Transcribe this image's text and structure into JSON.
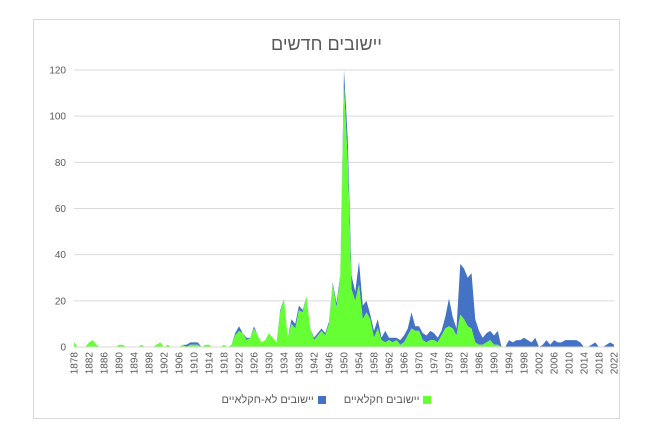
{
  "chart_data": {
    "type": "area",
    "title": "יישובים חדשים",
    "xlabel": "",
    "ylabel": "",
    "ylim": [
      0,
      120
    ],
    "yticks": [
      "0",
      "20",
      "40",
      "60",
      "80",
      "100",
      "120"
    ],
    "xlim": [
      1878,
      2022
    ],
    "xtick_years": [
      1878,
      1882,
      1886,
      1890,
      1894,
      1898,
      1902,
      1906,
      1910,
      1914,
      1918,
      1922,
      1926,
      1930,
      1934,
      1938,
      1942,
      1946,
      1950,
      1954,
      1958,
      1962,
      1966,
      1970,
      1974,
      1978,
      1982,
      1986,
      1990,
      1994,
      1998,
      2002,
      2006,
      2010,
      2014,
      2018,
      2022
    ],
    "grid": true,
    "legend_position": "bottom",
    "series": [
      {
        "name": "יישובים חקלאיים",
        "color": "#66ff33",
        "points": [
          [
            1878,
            2
          ],
          [
            1879,
            0
          ],
          [
            1880,
            0
          ],
          [
            1881,
            0
          ],
          [
            1882,
            2
          ],
          [
            1883,
            3
          ],
          [
            1884,
            1
          ],
          [
            1885,
            0
          ],
          [
            1886,
            0
          ],
          [
            1887,
            0
          ],
          [
            1888,
            0
          ],
          [
            1889,
            0
          ],
          [
            1890,
            1
          ],
          [
            1891,
            1
          ],
          [
            1892,
            0
          ],
          [
            1893,
            0
          ],
          [
            1894,
            0
          ],
          [
            1895,
            0
          ],
          [
            1896,
            1
          ],
          [
            1897,
            0
          ],
          [
            1898,
            0
          ],
          [
            1899,
            0
          ],
          [
            1900,
            1
          ],
          [
            1901,
            2
          ],
          [
            1902,
            0
          ],
          [
            1903,
            1
          ],
          [
            1904,
            0
          ],
          [
            1905,
            0
          ],
          [
            1906,
            0
          ],
          [
            1907,
            1
          ],
          [
            1908,
            0
          ],
          [
            1909,
            1
          ],
          [
            1910,
            1
          ],
          [
            1911,
            1
          ],
          [
            1912,
            0
          ],
          [
            1913,
            1
          ],
          [
            1914,
            1
          ],
          [
            1915,
            0
          ],
          [
            1916,
            0
          ],
          [
            1917,
            0
          ],
          [
            1918,
            1
          ],
          [
            1919,
            0
          ],
          [
            1920,
            1
          ],
          [
            1921,
            5
          ],
          [
            1922,
            7
          ],
          [
            1923,
            6
          ],
          [
            1924,
            3
          ],
          [
            1925,
            4
          ],
          [
            1926,
            8
          ],
          [
            1927,
            5
          ],
          [
            1928,
            2
          ],
          [
            1929,
            3
          ],
          [
            1930,
            6
          ],
          [
            1931,
            4
          ],
          [
            1932,
            2
          ],
          [
            1933,
            15
          ],
          [
            1934,
            21
          ],
          [
            1935,
            4
          ],
          [
            1936,
            10
          ],
          [
            1937,
            8
          ],
          [
            1938,
            16
          ],
          [
            1939,
            15
          ],
          [
            1940,
            22
          ],
          [
            1941,
            8
          ],
          [
            1942,
            3
          ],
          [
            1943,
            5
          ],
          [
            1944,
            7
          ],
          [
            1945,
            5
          ],
          [
            1946,
            10
          ],
          [
            1947,
            27
          ],
          [
            1948,
            17
          ],
          [
            1949,
            30
          ],
          [
            1950,
            113
          ],
          [
            1951,
            80
          ],
          [
            1952,
            25
          ],
          [
            1953,
            20
          ],
          [
            1954,
            27
          ],
          [
            1955,
            12
          ],
          [
            1956,
            15
          ],
          [
            1957,
            12
          ],
          [
            1958,
            4
          ],
          [
            1959,
            8
          ],
          [
            1960,
            3
          ],
          [
            1961,
            2
          ],
          [
            1962,
            3
          ],
          [
            1963,
            2
          ],
          [
            1964,
            3
          ],
          [
            1965,
            1
          ],
          [
            1966,
            2
          ],
          [
            1967,
            5
          ],
          [
            1968,
            8
          ],
          [
            1969,
            7
          ],
          [
            1970,
            7
          ],
          [
            1971,
            3
          ],
          [
            1972,
            2
          ],
          [
            1973,
            3
          ],
          [
            1974,
            3
          ],
          [
            1975,
            2
          ],
          [
            1976,
            5
          ],
          [
            1977,
            8
          ],
          [
            1978,
            9
          ],
          [
            1979,
            8
          ],
          [
            1980,
            5
          ],
          [
            1981,
            14
          ],
          [
            1982,
            12
          ],
          [
            1983,
            9
          ],
          [
            1984,
            8
          ],
          [
            1985,
            2
          ],
          [
            1986,
            1
          ],
          [
            1987,
            1
          ],
          [
            1988,
            2
          ],
          [
            1989,
            3
          ],
          [
            1990,
            1
          ],
          [
            1991,
            1
          ],
          [
            1992,
            0
          ],
          [
            1993,
            0
          ],
          [
            1994,
            0
          ],
          [
            1995,
            0
          ],
          [
            1996,
            0
          ],
          [
            1997,
            0
          ],
          [
            1998,
            0
          ],
          [
            1999,
            0
          ],
          [
            2000,
            0
          ],
          [
            2001,
            0
          ],
          [
            2002,
            0
          ],
          [
            2003,
            0
          ],
          [
            2004,
            0
          ],
          [
            2005,
            0
          ],
          [
            2006,
            0
          ],
          [
            2007,
            0
          ],
          [
            2008,
            0
          ],
          [
            2009,
            0
          ],
          [
            2010,
            0
          ],
          [
            2011,
            0
          ],
          [
            2012,
            0
          ],
          [
            2013,
            0
          ],
          [
            2014,
            0
          ],
          [
            2015,
            0
          ],
          [
            2016,
            0
          ],
          [
            2017,
            0
          ],
          [
            2018,
            0
          ],
          [
            2019,
            0
          ],
          [
            2020,
            0
          ],
          [
            2021,
            0
          ],
          [
            2022,
            0
          ]
        ]
      },
      {
        "name": "יישובים לא-חקלאיים",
        "color": "#4472c4",
        "points": [
          [
            1878,
            0
          ],
          [
            1879,
            0
          ],
          [
            1880,
            0
          ],
          [
            1881,
            0
          ],
          [
            1882,
            0
          ],
          [
            1883,
            0
          ],
          [
            1884,
            0
          ],
          [
            1885,
            0
          ],
          [
            1886,
            0
          ],
          [
            1887,
            0
          ],
          [
            1888,
            0
          ],
          [
            1889,
            0
          ],
          [
            1890,
            0
          ],
          [
            1891,
            0
          ],
          [
            1892,
            0
          ],
          [
            1893,
            0
          ],
          [
            1894,
            0
          ],
          [
            1895,
            0
          ],
          [
            1896,
            0
          ],
          [
            1897,
            0
          ],
          [
            1898,
            0
          ],
          [
            1899,
            0
          ],
          [
            1900,
            0
          ],
          [
            1901,
            0
          ],
          [
            1902,
            0
          ],
          [
            1903,
            0
          ],
          [
            1904,
            0
          ],
          [
            1905,
            0
          ],
          [
            1906,
            0
          ],
          [
            1907,
            0
          ],
          [
            1908,
            1
          ],
          [
            1909,
            1
          ],
          [
            1910,
            1
          ],
          [
            1911,
            1
          ],
          [
            1912,
            0
          ],
          [
            1913,
            0
          ],
          [
            1914,
            0
          ],
          [
            1915,
            0
          ],
          [
            1916,
            0
          ],
          [
            1917,
            0
          ],
          [
            1918,
            0
          ],
          [
            1919,
            0
          ],
          [
            1920,
            0
          ],
          [
            1921,
            1
          ],
          [
            1922,
            2
          ],
          [
            1923,
            0
          ],
          [
            1924,
            1
          ],
          [
            1925,
            0
          ],
          [
            1926,
            1
          ],
          [
            1927,
            0
          ],
          [
            1928,
            0
          ],
          [
            1929,
            0
          ],
          [
            1930,
            0
          ],
          [
            1931,
            0
          ],
          [
            1932,
            0
          ],
          [
            1933,
            1
          ],
          [
            1934,
            0
          ],
          [
            1935,
            0
          ],
          [
            1936,
            2
          ],
          [
            1937,
            2
          ],
          [
            1938,
            2
          ],
          [
            1939,
            1
          ],
          [
            1940,
            0
          ],
          [
            1941,
            0
          ],
          [
            1942,
            1
          ],
          [
            1943,
            1
          ],
          [
            1944,
            1
          ],
          [
            1945,
            1
          ],
          [
            1946,
            1
          ],
          [
            1947,
            1
          ],
          [
            1948,
            2
          ],
          [
            1949,
            1
          ],
          [
            1950,
            7
          ],
          [
            1951,
            10
          ],
          [
            1952,
            6
          ],
          [
            1953,
            4
          ],
          [
            1954,
            10
          ],
          [
            1955,
            6
          ],
          [
            1956,
            5
          ],
          [
            1957,
            2
          ],
          [
            1958,
            3
          ],
          [
            1959,
            4
          ],
          [
            1960,
            1
          ],
          [
            1961,
            5
          ],
          [
            1962,
            1
          ],
          [
            1963,
            2
          ],
          [
            1964,
            1
          ],
          [
            1965,
            2
          ],
          [
            1966,
            3
          ],
          [
            1967,
            3
          ],
          [
            1968,
            7
          ],
          [
            1969,
            2
          ],
          [
            1970,
            2
          ],
          [
            1971,
            3
          ],
          [
            1972,
            3
          ],
          [
            1973,
            4
          ],
          [
            1974,
            3
          ],
          [
            1975,
            2
          ],
          [
            1976,
            2
          ],
          [
            1977,
            5
          ],
          [
            1978,
            12
          ],
          [
            1979,
            5
          ],
          [
            1980,
            3
          ],
          [
            1981,
            22
          ],
          [
            1982,
            22
          ],
          [
            1983,
            21
          ],
          [
            1984,
            24
          ],
          [
            1985,
            10
          ],
          [
            1986,
            6
          ],
          [
            1987,
            3
          ],
          [
            1988,
            4
          ],
          [
            1989,
            4
          ],
          [
            1990,
            4
          ],
          [
            1991,
            6
          ],
          [
            1992,
            0
          ],
          [
            1993,
            0
          ],
          [
            1994,
            3
          ],
          [
            1995,
            2
          ],
          [
            1996,
            3
          ],
          [
            1997,
            3
          ],
          [
            1998,
            4
          ],
          [
            1999,
            3
          ],
          [
            2000,
            2
          ],
          [
            2001,
            4
          ],
          [
            2002,
            0
          ],
          [
            2003,
            1
          ],
          [
            2004,
            3
          ],
          [
            2005,
            1
          ],
          [
            2006,
            3
          ],
          [
            2007,
            2
          ],
          [
            2008,
            2
          ],
          [
            2009,
            3
          ],
          [
            2010,
            3
          ],
          [
            2011,
            3
          ],
          [
            2012,
            3
          ],
          [
            2013,
            2
          ],
          [
            2014,
            0
          ],
          [
            2015,
            0
          ],
          [
            2016,
            1
          ],
          [
            2017,
            2
          ],
          [
            2018,
            0
          ],
          [
            2019,
            0
          ],
          [
            2020,
            1
          ],
          [
            2021,
            2
          ],
          [
            2022,
            1
          ]
        ]
      }
    ]
  }
}
